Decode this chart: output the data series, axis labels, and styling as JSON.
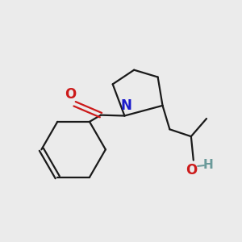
{
  "bg_color": "#ebebeb",
  "bond_color": "#1a1a1a",
  "N_color": "#1a1acc",
  "O_color": "#cc1a1a",
  "H_color": "#6a9a9a",
  "line_width": 1.6,
  "font_size_atom": 12,
  "fig_size": [
    3.0,
    3.0
  ],
  "dpi": 100,
  "xlim": [
    0,
    10
  ],
  "ylim": [
    0,
    10
  ]
}
